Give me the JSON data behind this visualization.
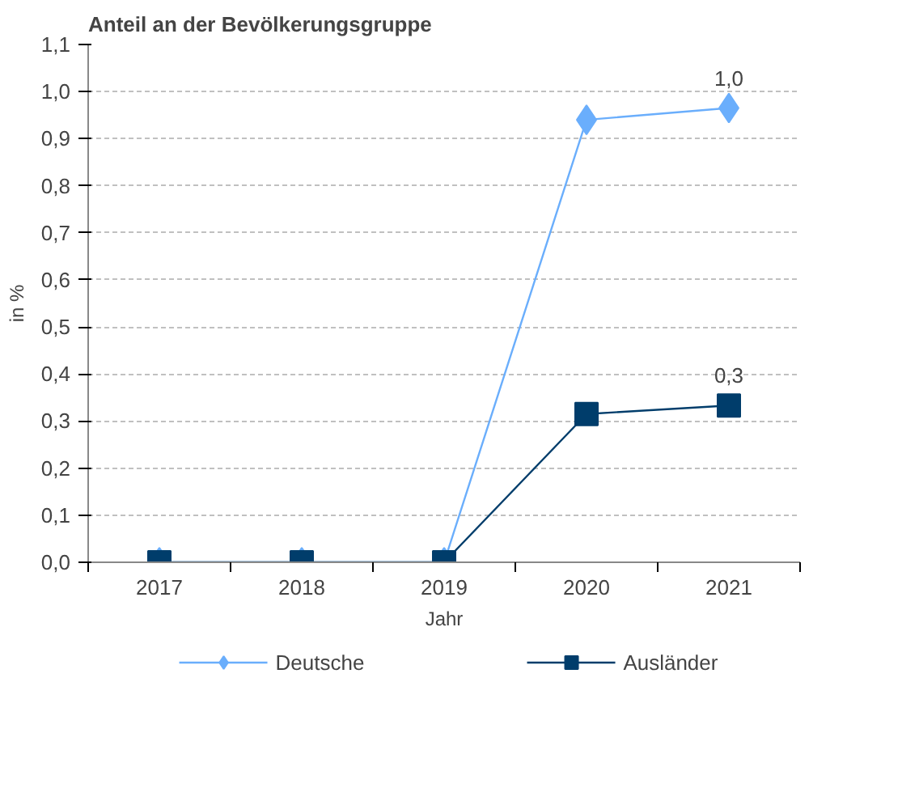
{
  "chart_data": {
    "type": "line",
    "title": "Anteil an der Bevölkerungsgruppe",
    "xlabel": "Jahr",
    "ylabel": "in %",
    "categories": [
      "2017",
      "2018",
      "2019",
      "2020",
      "2021"
    ],
    "series": [
      {
        "name": "Deutsche",
        "color": "#6aaefc",
        "marker": "diamond",
        "values": [
          0,
          0,
          0,
          0.94,
          0.965
        ],
        "value_labels": [
          null,
          null,
          null,
          null,
          "1,0"
        ]
      },
      {
        "name": "Ausländer",
        "color": "#003d6b",
        "marker": "square",
        "values": [
          0,
          0,
          0,
          0.315,
          0.333
        ],
        "value_labels": [
          null,
          null,
          null,
          null,
          "0,3"
        ]
      }
    ],
    "ylim": [
      0,
      1.1
    ],
    "yticks": [
      {
        "value": 0,
        "label": "0,0"
      },
      {
        "value": 0.1,
        "label": "0,1"
      },
      {
        "value": 0.2,
        "label": "0,2"
      },
      {
        "value": 0.3,
        "label": "0,3"
      },
      {
        "value": 0.4,
        "label": "0,4"
      },
      {
        "value": 0.5,
        "label": "0,5"
      },
      {
        "value": 0.6,
        "label": "0,6"
      },
      {
        "value": 0.7,
        "label": "0,7"
      },
      {
        "value": 0.8,
        "label": "0,8"
      },
      {
        "value": 0.9,
        "label": "0,9"
      },
      {
        "value": 1.0,
        "label": "1,0"
      },
      {
        "value": 1.1,
        "label": "1,1"
      }
    ],
    "grid": "y",
    "legend": "bottom",
    "line_style": "solid"
  }
}
